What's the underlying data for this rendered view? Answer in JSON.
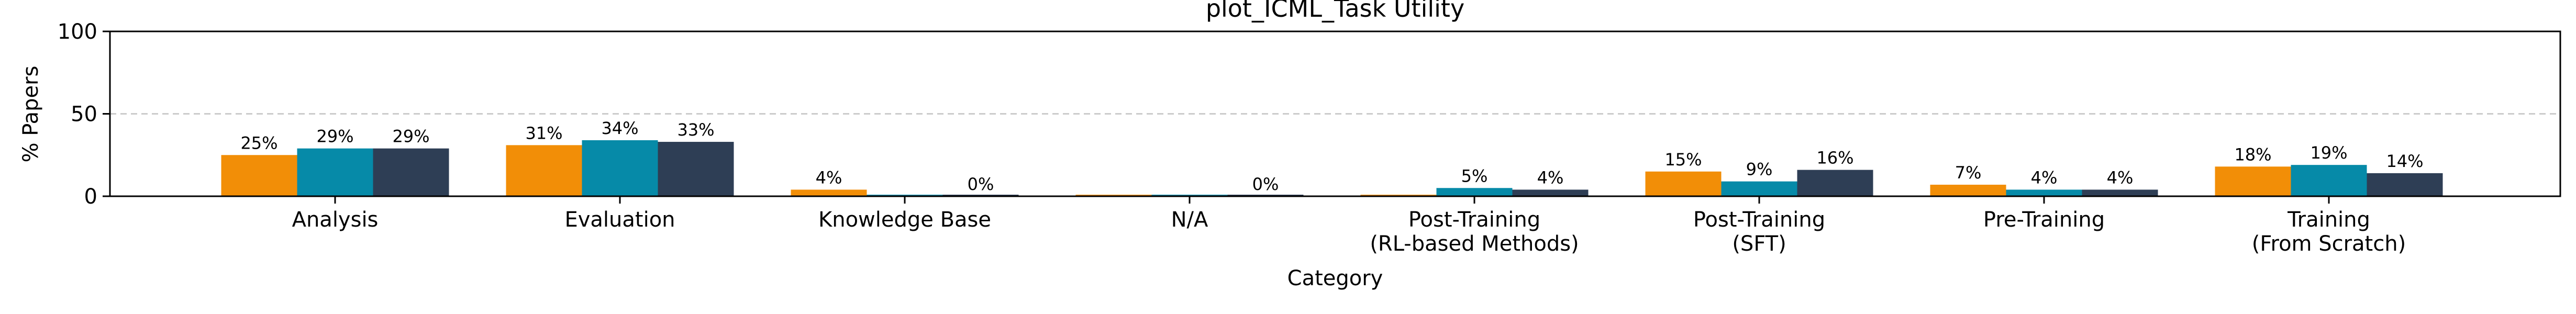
{
  "chart_data": {
    "type": "bar",
    "title": "plot_ICML_Task Utility",
    "xlabel": "Category",
    "ylabel": "% Papers",
    "ylim": [
      0,
      100
    ],
    "yticks": [
      0,
      50,
      100
    ],
    "grid": "y-dashed",
    "categories": [
      [
        "Analysis"
      ],
      [
        "Evaluation"
      ],
      [
        "Knowledge Base"
      ],
      [
        "N/A"
      ],
      [
        "Post-Training",
        "(RL-based Methods)"
      ],
      [
        "Post-Training",
        "(SFT)"
      ],
      [
        "Pre-Training"
      ],
      [
        "Training",
        "(From Scratch)"
      ]
    ],
    "series": [
      {
        "color": "#f28e07",
        "values": [
          25,
          31,
          4,
          0,
          0,
          15,
          7,
          18
        ],
        "labels": [
          "25%",
          "31%",
          "4%",
          "",
          "",
          "15%",
          "7%",
          "18%"
        ]
      },
      {
        "color": "#068aa8",
        "values": [
          29,
          34,
          0,
          0,
          5,
          9,
          4,
          19
        ],
        "labels": [
          "29%",
          "34%",
          "",
          "",
          "5%",
          "9%",
          "4%",
          "19%"
        ]
      },
      {
        "color": "#2e3e55",
        "values": [
          29,
          33,
          0,
          0,
          4,
          16,
          4,
          14
        ],
        "labels": [
          "29%",
          "33%",
          "0%",
          "0%",
          "4%",
          "16%",
          "4%",
          "14%"
        ]
      }
    ]
  }
}
